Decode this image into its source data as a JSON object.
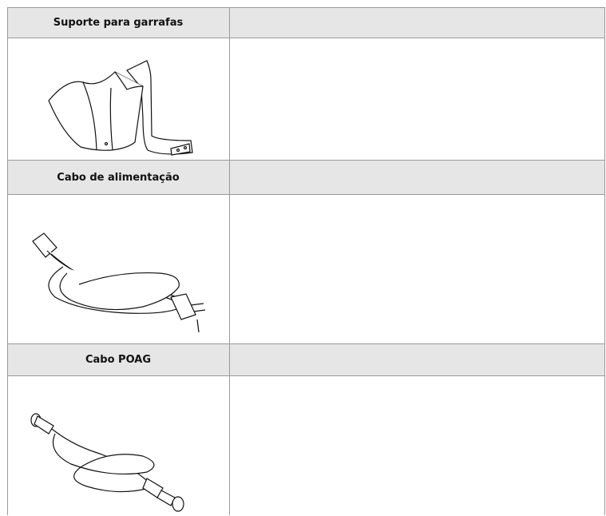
{
  "table": {
    "rows": [
      {
        "label": "Suporte para garrafas"
      },
      {
        "label": "Cabo de alimentação"
      },
      {
        "label": "Cabo POAG"
      }
    ]
  }
}
